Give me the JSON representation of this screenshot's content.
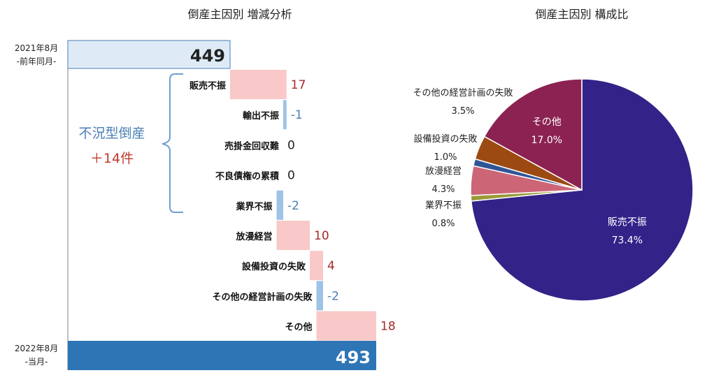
{
  "waterfall": {
    "title": "倒産主因別 増減分析",
    "start": {
      "label_line1": "2021年8月",
      "label_line2": "-前年同月-",
      "value": 449,
      "value_label": "449"
    },
    "end": {
      "label_line1": "2022年8月",
      "label_line2": "-当月-",
      "value": 493,
      "value_label": "493"
    },
    "bracket_label": "不況型倒産",
    "bracket_change": "＋14件",
    "colors": {
      "positive": "#f9c8c8",
      "negative": "#9dc3e6",
      "start_fill": "#deebf7",
      "end_fill": "#2e75b6",
      "pos_text": "#a52a2a",
      "neg_text": "#4a7fb5",
      "bracket": "#6d9fd1"
    }
  },
  "pie": {
    "title": "倒産主因別 構成比",
    "slices": [
      {
        "name": "販売不振",
        "pct": "73.4%",
        "value": 73.4,
        "color": "#332288"
      },
      {
        "name": "業界不振",
        "pct": "0.8%",
        "value": 0.8,
        "color": "#9a9a3a"
      },
      {
        "name": "放漫経営",
        "pct": "4.3%",
        "value": 4.3,
        "color": "#cc6677"
      },
      {
        "name": "設備投資の失敗",
        "pct": "1.0%",
        "value": 1.0,
        "color": "#2f5597"
      },
      {
        "name": "その他の経営計画の失敗",
        "pct": "3.5%",
        "value": 3.5,
        "color": "#9c4a12"
      },
      {
        "name": "その他",
        "pct": "17.0%",
        "value": 17.0,
        "color": "#8b2252"
      }
    ]
  },
  "chart_data": [
    {
      "type": "bar",
      "title": "倒産主因別 増減分析",
      "categories": [
        "販売不振",
        "輸出不振",
        "売掛金回収難",
        "不良債権の累積",
        "業界不振",
        "放漫経営",
        "設備投資の失敗",
        "その他の経営計画の失敗",
        "その他"
      ],
      "values": [
        17,
        -1,
        0,
        0,
        -2,
        10,
        4,
        -2,
        18
      ],
      "value_labels": [
        "17",
        "-1",
        "0",
        "0",
        "-2",
        "10",
        "4",
        "-2",
        "18"
      ],
      "start": 449,
      "end": 493
    },
    {
      "type": "pie",
      "title": "倒産主因別 構成比",
      "categories": [
        "販売不振",
        "業界不振",
        "放漫経営",
        "設備投資の失敗",
        "その他の経営計画の失敗",
        "その他"
      ],
      "values": [
        73.4,
        0.8,
        4.3,
        1.0,
        3.5,
        17.0
      ]
    }
  ]
}
